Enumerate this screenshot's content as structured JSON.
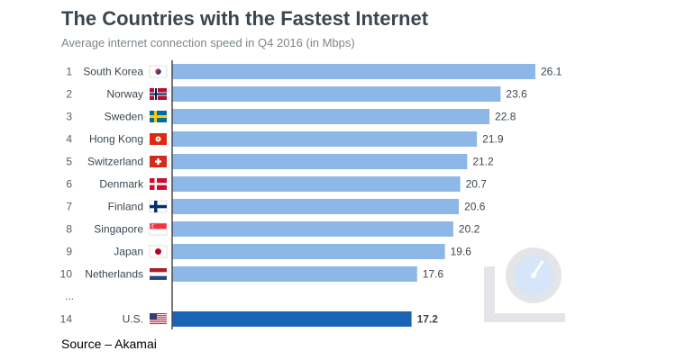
{
  "title": "The Countries with the Fastest Internet",
  "subtitle": "Average internet connection speed in Q4 2016 (in Mbps)",
  "source": "Source – Akamai",
  "colors": {
    "bar": "#8cb7e6",
    "bar_highlight": "#1a64b5",
    "axis": "#4a4a4a",
    "illustration": "#e3e5e8",
    "illustration_accent": "#d6e5f7"
  },
  "icons": [
    "speedometer-laptop-icon"
  ],
  "chart_data": {
    "type": "bar",
    "orientation": "horizontal",
    "title": "The Countries with the Fastest Internet",
    "subtitle": "Average internet connection speed in Q4 2016 (in Mbps)",
    "xlabel": "",
    "ylabel": "",
    "xlim": [
      0,
      26.1
    ],
    "grid": false,
    "gap_label": "...",
    "categories": [
      {
        "rank": "1",
        "country": "South Korea",
        "flag": "south-korea-flag-icon",
        "value": 26.1,
        "label": "26.1"
      },
      {
        "rank": "2",
        "country": "Norway",
        "flag": "norway-flag-icon",
        "value": 23.6,
        "label": "23.6"
      },
      {
        "rank": "3",
        "country": "Sweden",
        "flag": "sweden-flag-icon",
        "value": 22.8,
        "label": "22.8"
      },
      {
        "rank": "4",
        "country": "Hong Kong",
        "flag": "hong-kong-flag-icon",
        "value": 21.9,
        "label": "21.9"
      },
      {
        "rank": "5",
        "country": "Switzerland",
        "flag": "switzerland-flag-icon",
        "value": 21.2,
        "label": "21.2"
      },
      {
        "rank": "6",
        "country": "Denmark",
        "flag": "denmark-flag-icon",
        "value": 20.7,
        "label": "20.7"
      },
      {
        "rank": "7",
        "country": "Finland",
        "flag": "finland-flag-icon",
        "value": 20.6,
        "label": "20.6"
      },
      {
        "rank": "8",
        "country": "Singapore",
        "flag": "singapore-flag-icon",
        "value": 20.2,
        "label": "20.2"
      },
      {
        "rank": "9",
        "country": "Japan",
        "flag": "japan-flag-icon",
        "value": 19.6,
        "label": "19.6"
      },
      {
        "rank": "10",
        "country": "Netherlands",
        "flag": "netherlands-flag-icon",
        "value": 17.6,
        "label": "17.6"
      }
    ],
    "highlight": {
      "rank": "14",
      "country": "U.S.",
      "flag": "us-flag-icon",
      "value": 17.2,
      "label": "17.2"
    }
  }
}
